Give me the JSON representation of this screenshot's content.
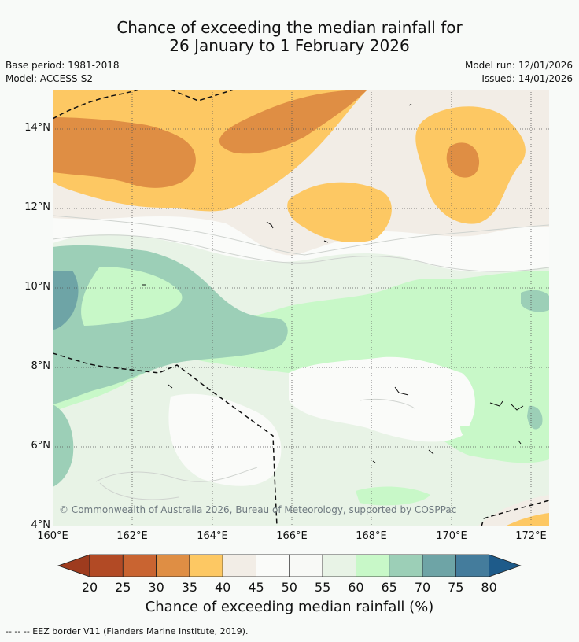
{
  "title": {
    "line1": "Chance of exceeding the median rainfall for",
    "line2": "26 January to 1 February 2026"
  },
  "meta": {
    "base_period": "Base period: 1981-2018",
    "model": "Model: ACCESS-S2",
    "model_run": "Model run: 12/01/2026",
    "issued": "Issued: 14/01/2026"
  },
  "map": {
    "lat_labels": [
      "14°N",
      "12°N",
      "10°N",
      "8°N",
      "6°N",
      "4°N"
    ],
    "lon_labels": [
      "160°E",
      "162°E",
      "164°E",
      "166°E",
      "168°E",
      "170°E",
      "172°E"
    ],
    "copyright": "© Commonwealth of Australia 2026, Bureau of Meteorology, supported by COSPPac"
  },
  "colorbar": {
    "ticks": [
      "20",
      "25",
      "30",
      "35",
      "40",
      "45",
      "50",
      "55",
      "60",
      "65",
      "70",
      "75",
      "80"
    ],
    "colors": [
      "#9e3b1e",
      "#b24a25",
      "#c96431",
      "#df8e44",
      "#fdc863",
      "#f2ede6",
      "#fafbf9",
      "#f8f9f6",
      "#e8f3e6",
      "#c8f8c8",
      "#9ccfb7",
      "#6ea4a6",
      "#447c9c",
      "#1e5b8a"
    ],
    "title": "Chance of exceeding median rainfall (%)"
  },
  "footer": {
    "eez_note": "--  --  -- EEZ border V11 (Flanders Marine Institute, 2019)."
  }
}
